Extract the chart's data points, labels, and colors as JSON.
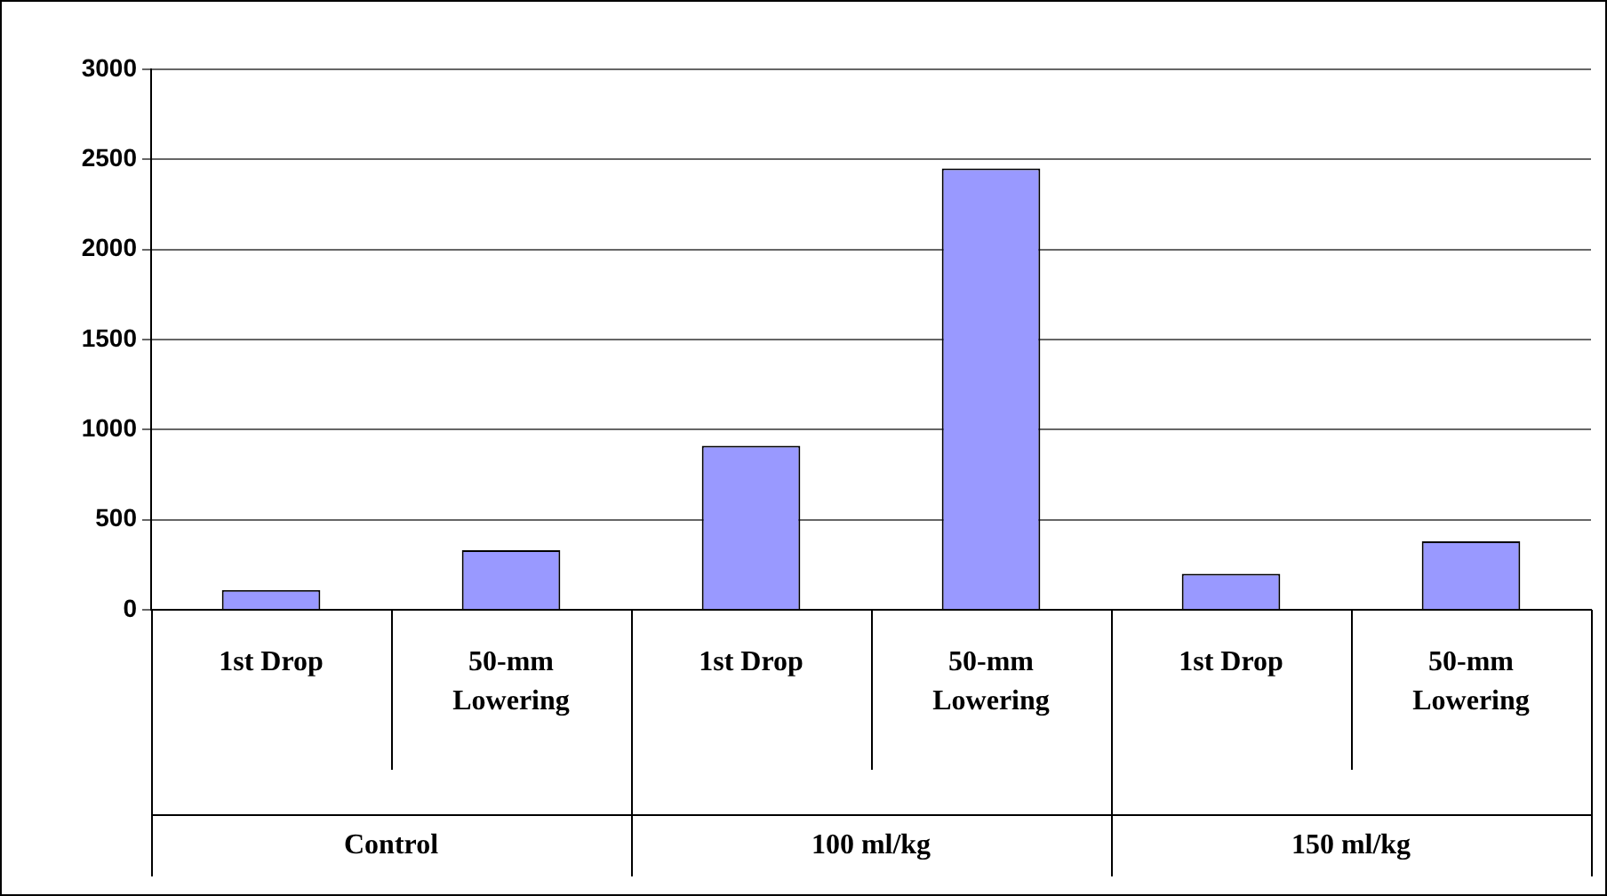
{
  "chart_data": {
    "type": "bar",
    "categories": [
      "1st Drop",
      "50-mm Lowering",
      "1st Drop",
      "50-mm Lowering",
      "1st Drop",
      "50-mm Lowering"
    ],
    "values": [
      110,
      330,
      910,
      2450,
      200,
      380
    ],
    "color": "#9999ff",
    "ylim": [
      0,
      3000
    ],
    "yticks": [
      0,
      500,
      1000,
      1500,
      2000,
      2500,
      3000
    ],
    "grid": "y",
    "legend": false,
    "annotations": [
      "Control",
      "100 ml/kg",
      "150 ml/kg"
    ]
  }
}
